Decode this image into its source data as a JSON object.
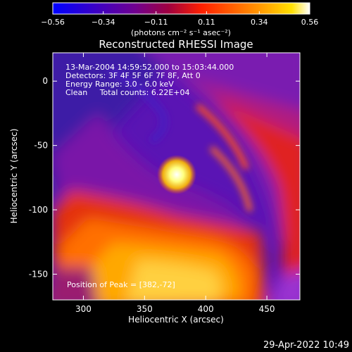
{
  "chart_data": {
    "type": "heatmap",
    "title": "Reconstructed RHESSI Image",
    "xlabel": "Heliocentric X (arcsec)",
    "ylabel": "Heliocentric Y (arcsec)",
    "xlim": [
      275,
      477
    ],
    "ylim": [
      -170,
      22
    ],
    "xticks": [
      300,
      350,
      400,
      450
    ],
    "yticks": [
      0,
      -50,
      -100,
      -150
    ],
    "colorbar": {
      "ticks": [
        -0.56,
        -0.34,
        -0.11,
        0.11,
        0.34,
        0.56
      ],
      "tick_labels": [
        "−0.56",
        "−0.34",
        "−0.11",
        "0.11",
        "0.34",
        "0.56"
      ],
      "min": -0.56,
      "max": 0.56,
      "units": "(photons cm⁻² s⁻¹ asec⁻²)",
      "colors": [
        "#0000ff",
        "#4000c0",
        "#700090",
        "#a00040",
        "#ff2000",
        "#ff6000",
        "#ffa000",
        "#ffe000",
        "#ffffff"
      ]
    },
    "info_lines": [
      "13-Mar-2004 14:59:52.000 to 15:03:44.000",
      "Detectors: 3F 4F 5F 6F 7F 8F, Att 0",
      "Energy Range: 3.0 - 6.0 keV",
      "Clean     Total counts: 6.22E+04"
    ],
    "peak_label": "Position of Peak = [382,-72]",
    "peak": [
      382,
      -72
    ],
    "footer_date": "29-Apr-2022 10:49"
  }
}
